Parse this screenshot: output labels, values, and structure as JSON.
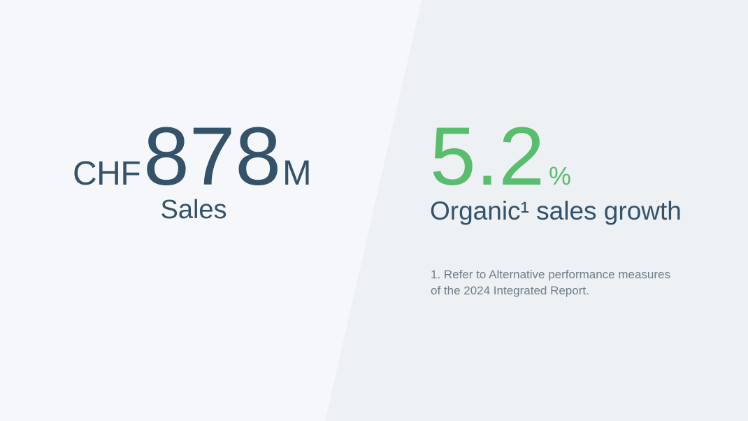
{
  "colors": {
    "background_left": "#F6F7FA",
    "background_right": "#EDF1F3",
    "primary_text": "#35526B",
    "accent_green": "#59BD6E",
    "footnote_text": "#6F7D8A"
  },
  "kpis": [
    {
      "currency": "CHF",
      "value": "878",
      "unit": "M",
      "label": "Sales"
    },
    {
      "value": "5.2",
      "unit": "%",
      "label": "Organic¹ sales growth"
    }
  ],
  "footnote": {
    "line1": "1. Refer to Alternative performance measures",
    "line2": "of the 2024 Integrated Report."
  }
}
